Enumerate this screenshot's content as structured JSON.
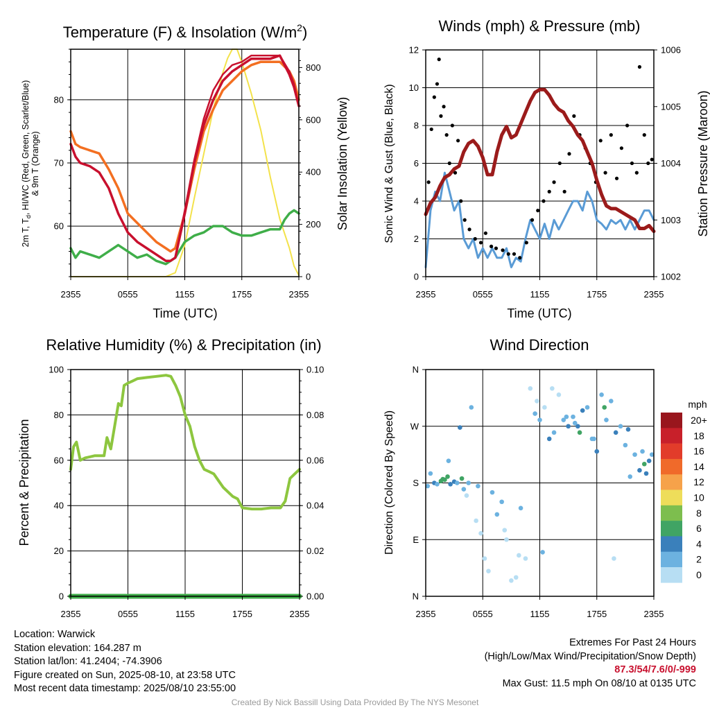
{
  "chart_data": [
    {
      "type": "line",
      "title": "Temperature (F) & Insolation (W/m²)",
      "xlabel": "Time (UTC)",
      "ylabel_left": "2m T, Td, HI/WC (Red, Green, Scarlet/Blue) & 9m T (Orange)",
      "ylabel_left_line1": "2m T, T",
      "ylabel_left_sub": "d",
      "ylabel_left_line1_rest": ", HI/WC (Red, Green, Scarlet/Blue)",
      "ylabel_left_line2": "& 9m T (Orange)",
      "ylabel_right": "Solar Insolation (Yellow)",
      "x_ticks": [
        "2355",
        "0555",
        "1155",
        "1755",
        "2355"
      ],
      "x_range_hours": [
        0,
        24
      ],
      "ylim": [
        52,
        88
      ],
      "ylim_right": [
        0,
        870
      ],
      "yticks": [
        60,
        70,
        80
      ],
      "yticks_right": [
        0,
        200,
        400,
        600,
        800
      ],
      "grid": true,
      "series": [
        {
          "name": "2m T",
          "color": "#c8102e",
          "axis": "left",
          "x": [
            0,
            0.5,
            1,
            2,
            3,
            4,
            5,
            6,
            7,
            8,
            9,
            10,
            10.5,
            11,
            12,
            13,
            14,
            15,
            16,
            17,
            18,
            19,
            20,
            21,
            22,
            23,
            23.5,
            24
          ],
          "values": [
            73,
            71,
            70,
            69.5,
            68.5,
            66,
            62,
            59,
            57.5,
            56.5,
            55.5,
            54.5,
            54.5,
            55,
            62,
            70,
            76,
            80,
            83,
            84.5,
            85.5,
            86.5,
            86.5,
            86.5,
            87,
            84,
            82,
            79
          ]
        },
        {
          "name": "9m T",
          "color": "#f36f21",
          "axis": "left",
          "x": [
            0,
            0.5,
            1,
            2,
            3,
            4,
            5,
            6,
            7,
            8,
            9,
            10,
            10.5,
            11,
            12,
            13,
            14,
            15,
            16,
            17,
            18,
            19,
            20,
            21,
            22,
            23,
            23.5,
            24
          ],
          "values": [
            75,
            73,
            72.5,
            72,
            71.5,
            69,
            66,
            62,
            60.5,
            59,
            57.5,
            56.5,
            56,
            56.5,
            62,
            69,
            75,
            78.5,
            81.5,
            83,
            84.5,
            85.5,
            86,
            86,
            86,
            84.5,
            83,
            80
          ]
        },
        {
          "name": "HI/WC",
          "color": "#c8102e",
          "axis": "left",
          "x": [
            0,
            0.5,
            1,
            2,
            3,
            4,
            5,
            6,
            7,
            8,
            9,
            10,
            10.5,
            11,
            12,
            13,
            14,
            15,
            16,
            17,
            18,
            19,
            20,
            21,
            22,
            23,
            23.5,
            24
          ],
          "values": [
            73,
            71,
            70,
            69.5,
            68.5,
            66,
            62,
            59,
            57.5,
            56.5,
            55.5,
            54.5,
            54.5,
            55,
            62.5,
            70.5,
            77,
            81.5,
            84,
            85.5,
            86,
            87,
            87,
            87,
            87,
            84.5,
            82.5,
            79
          ]
        },
        {
          "name": "2m Td",
          "color": "#3fae49",
          "axis": "left",
          "x": [
            0,
            0.5,
            1,
            2,
            3,
            4,
            5,
            6,
            7,
            8,
            9,
            10,
            11,
            12,
            13,
            14,
            15,
            16,
            17,
            18,
            19,
            20,
            21,
            22,
            22.5,
            23,
            23.5,
            24
          ],
          "values": [
            56.5,
            55,
            56,
            55.5,
            55,
            56,
            57,
            56,
            55,
            55.5,
            54.5,
            54,
            55,
            57.5,
            58.5,
            59,
            60,
            60,
            59,
            58.5,
            58.5,
            59,
            59.5,
            59.5,
            61,
            62,
            62.5,
            62
          ]
        },
        {
          "name": "Solar Insolation",
          "color": "#f3e24b",
          "axis": "right",
          "x": [
            0,
            9,
            10,
            11,
            12,
            13,
            14,
            15,
            16,
            16.5,
            17,
            17.5,
            18,
            19,
            20,
            21,
            22,
            23,
            23.5,
            24
          ],
          "values": [
            0,
            0,
            0,
            15,
            120,
            300,
            470,
            640,
            780,
            835,
            870,
            870,
            820,
            700,
            560,
            380,
            220,
            110,
            40,
            5
          ]
        }
      ]
    },
    {
      "type": "line",
      "title": "Winds (mph) & Pressure (mb)",
      "xlabel": "Time (UTC)",
      "ylabel_left": "Sonic Wind & Gust (Blue, Black)",
      "ylabel_right": "Station Pressure (Maroon)",
      "x_ticks": [
        "2355",
        "0555",
        "1155",
        "1755",
        "2355"
      ],
      "x_range_hours": [
        0,
        24
      ],
      "ylim": [
        0,
        12
      ],
      "ylim_right": [
        1002,
        1006
      ],
      "yticks": [
        0,
        2,
        4,
        6,
        8,
        10,
        12
      ],
      "yticks_right": [
        1002,
        1003,
        1004,
        1005,
        1006
      ],
      "grid": true,
      "series": [
        {
          "name": "Sonic Wind",
          "color": "#5a9bd5",
          "axis": "left",
          "x": [
            0,
            0.5,
            1,
            1.5,
            2,
            2.5,
            3,
            3.5,
            4,
            4.5,
            5,
            5.5,
            6,
            6.5,
            7,
            7.5,
            8,
            8.5,
            9,
            9.5,
            10,
            10.5,
            11,
            11.5,
            12,
            12.5,
            13,
            13.5,
            14,
            14.5,
            15,
            15.5,
            16,
            16.5,
            17,
            17.5,
            18,
            18.5,
            19,
            19.5,
            20,
            20.5,
            21,
            21.5,
            22,
            22.5,
            23,
            23.5,
            24
          ],
          "values": [
            0.5,
            3.5,
            4.5,
            4,
            5.5,
            4.5,
            3.5,
            4,
            2,
            1.5,
            2,
            1,
            1.5,
            1,
            1.5,
            1,
            1,
            1.5,
            0.5,
            1,
            0.8,
            2,
            3,
            2.5,
            2,
            2.8,
            2,
            3,
            2.5,
            3,
            3.5,
            4,
            4,
            3.5,
            4.5,
            4,
            3,
            2.8,
            2.5,
            3,
            2.8,
            3,
            2.5,
            3,
            2.5,
            3,
            3.5,
            3.5,
            3
          ]
        },
        {
          "name": "Gust",
          "color": "#000000",
          "axis": "left",
          "style": "points",
          "x": [
            0.3,
            0.6,
            0.9,
            1.2,
            1.4,
            1.6,
            1.9,
            2.2,
            2.5,
            2.8,
            3.1,
            3.4,
            3.7,
            4.1,
            4.6,
            5.2,
            5.8,
            6.3,
            6.9,
            7.4,
            8.1,
            8.7,
            9.3,
            9.9,
            10.6,
            11.2,
            11.8,
            12.4,
            13.0,
            13.5,
            14.1,
            14.6,
            15.1,
            15.6,
            16.2,
            16.8,
            17.3,
            17.9,
            18.4,
            18.9,
            19.5,
            20.1,
            20.6,
            21.2,
            21.7,
            22.2,
            22.5,
            23.0,
            23.4,
            23.8
          ],
          "values": [
            5,
            7.8,
            9.5,
            10.2,
            11.5,
            8.5,
            9,
            7.5,
            6,
            8,
            5.5,
            7.2,
            4,
            3,
            2.5,
            2,
            1.8,
            2.3,
            1.6,
            1.5,
            1.4,
            1.2,
            1.2,
            1.0,
            1.8,
            3,
            3.5,
            4,
            4.5,
            5,
            6,
            4.5,
            6.5,
            8.5,
            7.5,
            6.8,
            6,
            5,
            7.2,
            5.5,
            7.5,
            5.2,
            6.8,
            8,
            6,
            5.5,
            11.1,
            7.5,
            6,
            6.2
          ]
        },
        {
          "name": "Station Pressure",
          "color": "#9b1b1b",
          "axis": "right",
          "x": [
            0,
            0.5,
            1,
            1.5,
            2,
            2.5,
            3,
            3.5,
            4,
            4.5,
            5,
            5.5,
            6,
            6.5,
            7,
            7.5,
            8,
            8.5,
            9,
            9.5,
            10,
            10.5,
            11,
            11.5,
            12,
            12.5,
            13,
            13.5,
            14,
            14.5,
            15,
            15.5,
            16,
            16.5,
            17,
            17.5,
            18,
            18.5,
            19,
            19.5,
            20,
            20.5,
            21,
            21.5,
            22,
            22.5,
            23,
            23.5,
            24
          ],
          "values": [
            1003.1,
            1003.3,
            1003.4,
            1003.6,
            1003.75,
            1003.8,
            1003.9,
            1003.95,
            1004.2,
            1004.35,
            1004.4,
            1004.3,
            1004.1,
            1003.8,
            1003.8,
            1004.2,
            1004.5,
            1004.65,
            1004.45,
            1004.5,
            1004.7,
            1004.9,
            1005.1,
            1005.25,
            1005.3,
            1005.3,
            1005.2,
            1005.05,
            1004.95,
            1004.9,
            1004.75,
            1004.65,
            1004.5,
            1004.4,
            1004.2,
            1004.0,
            1003.7,
            1003.45,
            1003.25,
            1003.2,
            1003.2,
            1003.15,
            1003.1,
            1003.05,
            1003.0,
            1002.85,
            1002.85,
            1002.9,
            1002.8
          ]
        }
      ]
    },
    {
      "type": "line",
      "title": "Relative Humidity (%) & Precipitation (in)",
      "ylabel_left": "Percent & Precipitation",
      "x_ticks": [
        "2355",
        "0555",
        "1155",
        "1755",
        "2355"
      ],
      "x_range_hours": [
        0,
        24
      ],
      "ylim": [
        0,
        100
      ],
      "ylim_right": [
        0,
        0.1
      ],
      "yticks": [
        0,
        20,
        40,
        60,
        80,
        100
      ],
      "yticks_right": [
        "0.00",
        "0.02",
        "0.04",
        "0.06",
        "0.08",
        "0.10"
      ],
      "grid": true,
      "series": [
        {
          "name": "Relative Humidity",
          "color": "#8dc63f",
          "axis": "left",
          "x": [
            0,
            0.3,
            0.6,
            1,
            1.5,
            2,
            2.5,
            3,
            3.5,
            3.8,
            4.2,
            4.6,
            5,
            5.3,
            5.6,
            6,
            6.5,
            7,
            8,
            9,
            10,
            10.5,
            11,
            11.5,
            12,
            12.5,
            13,
            13.5,
            14,
            14.5,
            15,
            15.5,
            16,
            16.5,
            17,
            17.5,
            18,
            19,
            20,
            21,
            22,
            22.5,
            23,
            23.5,
            24
          ],
          "values": [
            56,
            66,
            68,
            60,
            61,
            61.5,
            62,
            62,
            62,
            70,
            65,
            75,
            85,
            84,
            93,
            94,
            95,
            96,
            96.5,
            97,
            97.5,
            97,
            93,
            88,
            80,
            75,
            66,
            60,
            56,
            55,
            54,
            51,
            48,
            46,
            44,
            43,
            39,
            38.5,
            38.5,
            39,
            39,
            42,
            52,
            54,
            56
          ]
        },
        {
          "name": "Precipitation",
          "color": "#3fae49",
          "axis": "right",
          "x": [
            0,
            24
          ],
          "values": [
            0,
            0
          ]
        }
      ]
    },
    {
      "type": "scatter",
      "title": "Wind Direction",
      "ylabel_left": "Direction (Colored By Speed)",
      "x_ticks": [
        "2355",
        "0555",
        "1155",
        "1755",
        "2355"
      ],
      "x_range_hours": [
        0,
        24
      ],
      "y_ticks": [
        "N",
        "E",
        "S",
        "W",
        "N"
      ],
      "ylim": [
        0,
        360
      ],
      "grid": true,
      "colorbar": {
        "title": "mph",
        "labels": [
          "20+",
          "18",
          "16",
          "14",
          "12",
          "10",
          "8",
          "6",
          "4",
          "2",
          "0"
        ],
        "colors": [
          "#99161d",
          "#c8202a",
          "#e23c2a",
          "#f06a2a",
          "#f6a24a",
          "#eedd5a",
          "#7dbe4e",
          "#40a464",
          "#3a80bb",
          "#6cb2e0",
          "#b7def3"
        ]
      },
      "points": {
        "x": [
          0.2,
          0.5,
          0.9,
          1.2,
          1.6,
          2.0,
          2.3,
          2.6,
          3.0,
          3.3,
          3.6,
          4.0,
          4.3,
          4.8,
          5.3,
          5.8,
          6.2,
          6.6,
          7.0,
          7.5,
          8.0,
          8.5,
          9.0,
          9.5,
          10.0,
          10.5,
          11.0,
          11.5,
          12.0,
          12.5,
          13.0,
          13.5,
          14.0,
          14.5,
          15.0,
          15.5,
          16.0,
          16.5,
          17.0,
          17.5,
          18.0,
          18.5,
          19.0,
          19.5,
          20.0,
          20.5,
          21.0,
          21.5,
          22.0,
          22.5,
          23.0,
          23.5,
          23.8,
          1.8,
          3.8,
          5.5,
          8.3,
          12.3,
          14.8,
          16.2,
          18.8,
          21.3,
          23.2,
          22.8,
          2.4,
          4.5,
          9.8,
          11.7,
          13.3,
          15.7,
          17.7,
          19.8
        ],
        "values": [
          175,
          195,
          180,
          178,
          183,
          185,
          190,
          178,
          182,
          180,
          268,
          170,
          160,
          300,
          120,
          100,
          60,
          40,
          165,
          130,
          150,
          90,
          25,
          30,
          140,
          60,
          330,
          290,
          280,
          300,
          250,
          260,
          320,
          280,
          270,
          285,
          270,
          295,
          300,
          250,
          230,
          320,
          280,
          310,
          260,
          270,
          240,
          190,
          225,
          200,
          210,
          215,
          225,
          186,
          187,
          175,
          105,
          70,
          285,
          260,
          300,
          265,
          195,
          230,
          215,
          180,
          65,
          310,
          330,
          275,
          250,
          60
        ],
        "speeds": [
          3,
          2,
          4,
          3,
          6,
          7,
          6,
          5,
          4,
          3,
          4,
          2,
          1,
          2,
          1,
          1,
          0,
          1,
          2,
          3,
          2,
          1,
          1,
          0,
          3,
          1,
          1,
          2,
          3,
          1,
          4,
          3,
          0,
          2,
          5,
          3,
          4,
          5,
          3,
          2,
          4,
          3,
          2,
          3,
          4,
          2,
          3,
          2,
          3,
          5,
          6,
          4,
          3,
          7,
          6,
          2,
          1,
          2,
          3,
          6,
          7,
          4,
          5,
          3,
          3,
          2,
          1,
          0,
          1,
          3,
          2,
          1
        ]
      }
    }
  ],
  "info": {
    "location": "Location: Warwick",
    "elevation": "Station elevation: 164.287 m",
    "latlon": "Station lat/lon: 41.2404; -74.3906",
    "created": "Figure created on Sun, 2025-08-10, at 23:58 UTC",
    "recent": "Most recent data timestamp: 2025/08/10 23:55:00"
  },
  "extremes": {
    "title": "Extremes For Past 24 Hours",
    "subtitle": "(High/Low/Max Wind/Precipitation/Snow Depth)",
    "values": "87.3/54/7.6/0/-999",
    "max_gust": "Max Gust: 11.5 mph On 08/10 at 0135 UTC"
  },
  "credit": "Created By Nick Bassill Using Data Provided By The NYS Mesonet"
}
